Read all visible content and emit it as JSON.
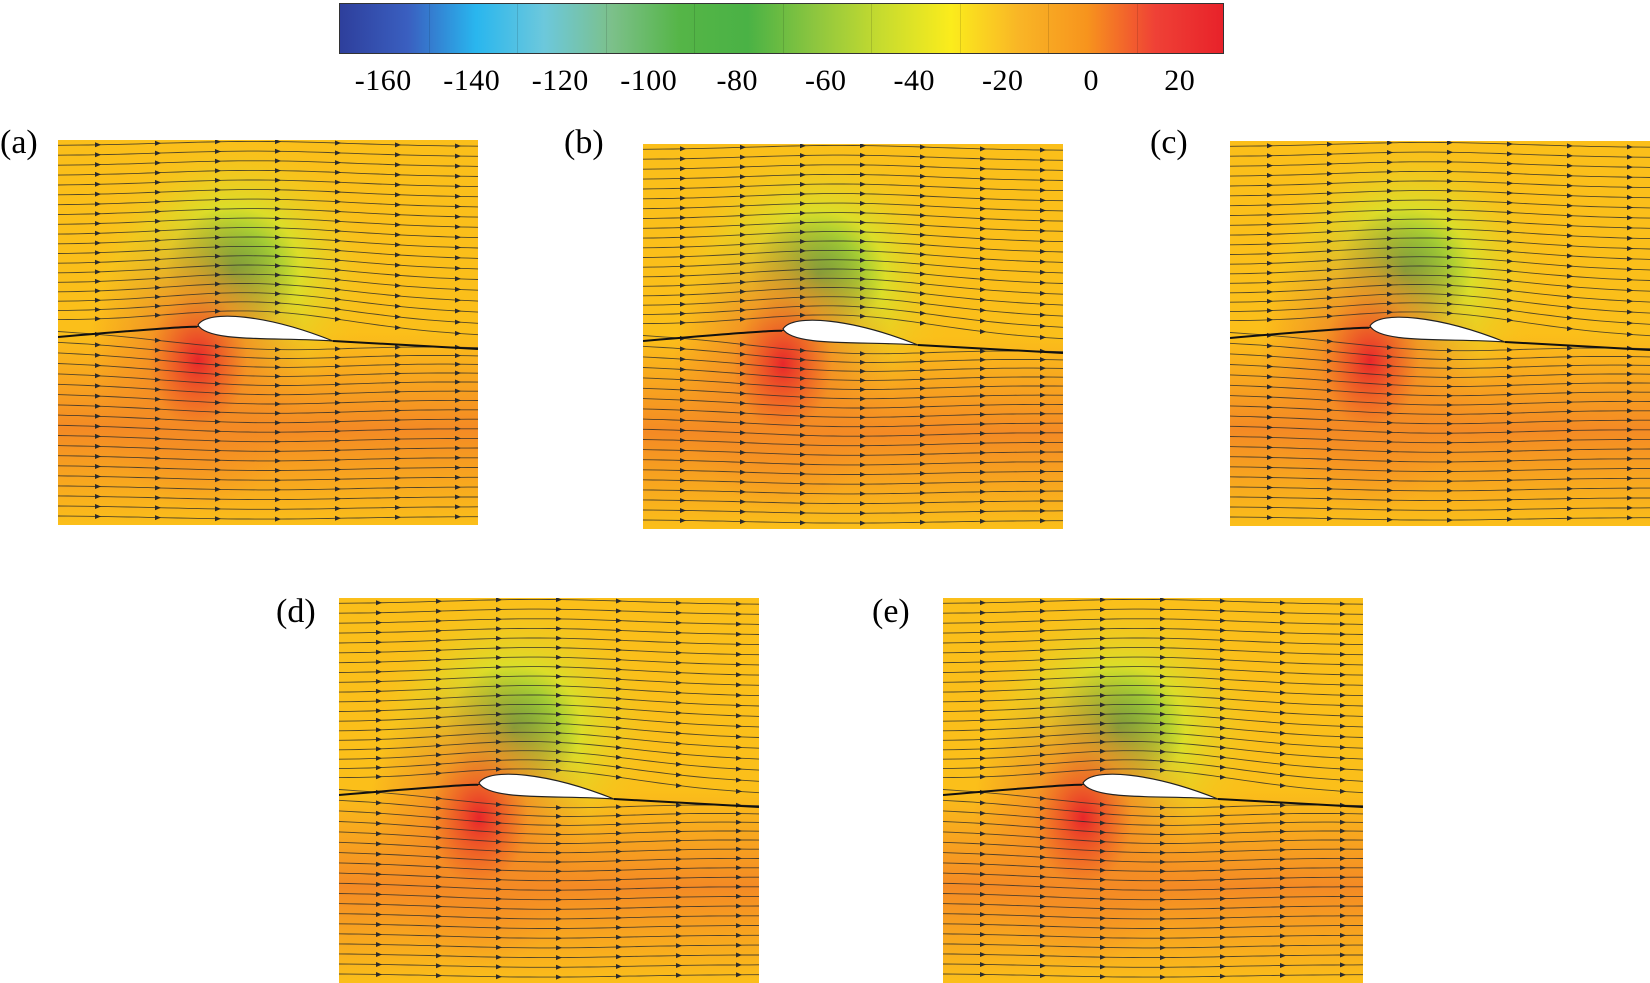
{
  "colorbar": {
    "ticks": [
      "-160",
      "-140",
      "-120",
      "-100",
      "-80",
      "-60",
      "-40",
      "-20",
      "0",
      "20"
    ],
    "tick_values": [
      -160,
      -140,
      -120,
      -100,
      -80,
      -60,
      -40,
      -20,
      0,
      20
    ],
    "range": [
      -170,
      30
    ],
    "colors": [
      "#2e3f9c",
      "#3a5fc0",
      "#29b6ee",
      "#6cc8dc",
      "#7cc08a",
      "#55b547",
      "#4ab245",
      "#8dc63f",
      "#c8dc2e",
      "#fbec1c",
      "#f9b526",
      "#f7941d",
      "#ef4136",
      "#e8222a"
    ]
  },
  "panels": [
    {
      "label": "(a)",
      "id": "a"
    },
    {
      "label": "(b)",
      "id": "b"
    },
    {
      "label": "(c)",
      "id": "c"
    },
    {
      "label": "(d)",
      "id": "d"
    },
    {
      "label": "(e)",
      "id": "e"
    }
  ],
  "field_colors": {
    "background": "#fbbf1a",
    "upper_low": "#2fa84a",
    "upper_mid": "#d8e12a",
    "stagnation": "#e8262a",
    "lower": "#f48a24",
    "streamline": "#2b2b2b"
  }
}
